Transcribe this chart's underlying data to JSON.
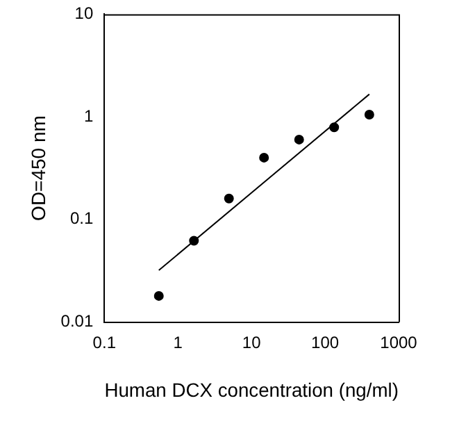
{
  "chart_data": {
    "type": "scatter",
    "xlabel": "Human DCX concentration (ng/ml)",
    "ylabel": "OD=450 nm",
    "log": "xy",
    "marker": "circle",
    "xlim": [
      0.1,
      1000
    ],
    "xticks": [
      0.1,
      1,
      10,
      100,
      1000
    ],
    "ylim": [
      0.01,
      10
    ],
    "yticks": [
      0.01,
      0.1,
      1,
      10
    ],
    "series": [
      {
        "color": "#000000",
        "x": [
          0.55,
          1.65,
          4.94,
          14.8,
          44.4,
          133,
          400
        ],
        "values": [
          0.018,
          0.062,
          0.16,
          0.4,
          0.6,
          0.79,
          1.05
        ]
      },
      {
        "type": "line",
        "color": "#000000",
        "marker": "none",
        "line_style": "solid",
        "x": [
          0.55,
          400
        ],
        "values": [
          0.032,
          1.66
        ]
      }
    ]
  }
}
